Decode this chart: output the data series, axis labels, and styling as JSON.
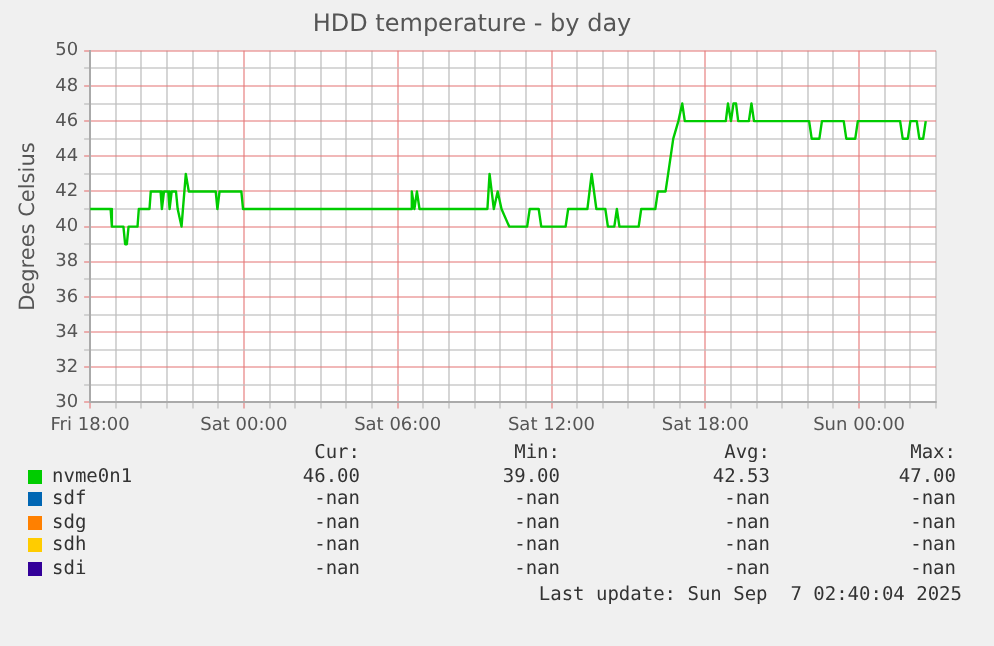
{
  "chart_data": {
    "type": "line",
    "title": "HDD temperature - by day",
    "ylabel": "Degrees Celsius",
    "xlim": [
      "2025-09-05T18:00",
      "2025-09-07T03:00"
    ],
    "xticks": [
      {
        "value": "2025-09-05T18:00",
        "label": "Fri 18:00"
      },
      {
        "value": "2025-09-05T19:00",
        "label": null
      },
      {
        "value": "2025-09-05T20:00",
        "label": null
      },
      {
        "value": "2025-09-05T21:00",
        "label": null
      },
      {
        "value": "2025-09-05T22:00",
        "label": null
      },
      {
        "value": "2025-09-05T23:00",
        "label": null
      },
      {
        "value": "2025-09-06T00:00",
        "label": "Sat 00:00"
      },
      {
        "value": "2025-09-06T01:00",
        "label": null
      },
      {
        "value": "2025-09-06T02:00",
        "label": null
      },
      {
        "value": "2025-09-06T03:00",
        "label": null
      },
      {
        "value": "2025-09-06T04:00",
        "label": null
      },
      {
        "value": "2025-09-06T05:00",
        "label": null
      },
      {
        "value": "2025-09-06T06:00",
        "label": "Sat 06:00"
      },
      {
        "value": "2025-09-06T07:00",
        "label": null
      },
      {
        "value": "2025-09-06T08:00",
        "label": null
      },
      {
        "value": "2025-09-06T09:00",
        "label": null
      },
      {
        "value": "2025-09-06T10:00",
        "label": null
      },
      {
        "value": "2025-09-06T11:00",
        "label": null
      },
      {
        "value": "2025-09-06T12:00",
        "label": "Sat 12:00"
      },
      {
        "value": "2025-09-06T13:00",
        "label": null
      },
      {
        "value": "2025-09-06T14:00",
        "label": null
      },
      {
        "value": "2025-09-06T15:00",
        "label": null
      },
      {
        "value": "2025-09-06T16:00",
        "label": null
      },
      {
        "value": "2025-09-06T17:00",
        "label": null
      },
      {
        "value": "2025-09-06T18:00",
        "label": "Sat 18:00"
      },
      {
        "value": "2025-09-06T19:00",
        "label": null
      },
      {
        "value": "2025-09-06T20:00",
        "label": null
      },
      {
        "value": "2025-09-06T21:00",
        "label": null
      },
      {
        "value": "2025-09-06T22:00",
        "label": null
      },
      {
        "value": "2025-09-06T23:00",
        "label": null
      },
      {
        "value": "2025-09-07T00:00",
        "label": "Sun 00:00"
      },
      {
        "value": "2025-09-07T01:00",
        "label": null
      },
      {
        "value": "2025-09-07T02:00",
        "label": null
      },
      {
        "value": "2025-09-07T03:00",
        "label": null
      }
    ],
    "ylim": [
      30,
      50
    ],
    "yticks": [
      30,
      {
        "value": 31,
        "label": null
      },
      32,
      {
        "value": 33,
        "label": null
      },
      34,
      {
        "value": 35,
        "label": null
      },
      36,
      {
        "value": 37,
        "label": null
      },
      38,
      {
        "value": 39,
        "label": null
      },
      40,
      {
        "value": 41,
        "label": null
      },
      42,
      {
        "value": 43,
        "label": null
      },
      44,
      {
        "value": 45,
        "label": null
      },
      46,
      {
        "value": 47,
        "label": null
      },
      48,
      {
        "value": 49,
        "label": null
      },
      50
    ],
    "grid": true,
    "legend": "bottom",
    "marker": "none",
    "line_style": "solid",
    "series": [
      {
        "name": "nvme0n1",
        "color": "#00cc00",
        "x": [
          "2025-09-05T18:00",
          "2025-09-05T18:48",
          "2025-09-05T18:51",
          "2025-09-05T19:18",
          "2025-09-05T19:22",
          "2025-09-05T19:26",
          "2025-09-05T19:30",
          "2025-09-05T19:51",
          "2025-09-05T19:54",
          "2025-09-05T20:19",
          "2025-09-05T20:22",
          "2025-09-05T20:45",
          "2025-09-05T20:48",
          "2025-09-05T20:53",
          "2025-09-05T21:03",
          "2025-09-05T21:06",
          "2025-09-05T21:11",
          "2025-09-05T21:21",
          "2025-09-05T21:25",
          "2025-09-05T21:34",
          "2025-09-05T21:44",
          "2025-09-05T21:51",
          "2025-09-05T22:54",
          "2025-09-05T22:58",
          "2025-09-05T23:03",
          "2025-09-05T23:54",
          "2025-09-05T23:58",
          "2025-09-06T06:30",
          "2025-09-06T06:33",
          "2025-09-06T06:39",
          "2025-09-06T06:45",
          "2025-09-06T06:51",
          "2025-09-06T09:30",
          "2025-09-06T09:35",
          "2025-09-06T09:45",
          "2025-09-06T09:54",
          "2025-09-06T10:03",
          "2025-09-06T10:21",
          "2025-09-06T11:03",
          "2025-09-06T11:09",
          "2025-09-06T11:30",
          "2025-09-06T11:36",
          "2025-09-06T12:33",
          "2025-09-06T12:39",
          "2025-09-06T13:24",
          "2025-09-06T13:34",
          "2025-09-06T13:45",
          "2025-09-06T14:06",
          "2025-09-06T14:12",
          "2025-09-06T14:27",
          "2025-09-06T14:33",
          "2025-09-06T14:39",
          "2025-09-06T15:24",
          "2025-09-06T15:30",
          "2025-09-06T16:03",
          "2025-09-06T16:09",
          "2025-09-06T16:27",
          "2025-09-06T16:33",
          "2025-09-06T16:45",
          "2025-09-06T16:57",
          "2025-09-06T17:06",
          "2025-09-06T17:12",
          "2025-09-06T18:48",
          "2025-09-06T18:53",
          "2025-09-06T19:00",
          "2025-09-06T19:06",
          "2025-09-06T19:12",
          "2025-09-06T19:17",
          "2025-09-06T19:42",
          "2025-09-06T19:48",
          "2025-09-06T19:54",
          "2025-09-06T22:03",
          "2025-09-06T22:09",
          "2025-09-06T22:27",
          "2025-09-06T22:33",
          "2025-09-06T23:24",
          "2025-09-06T23:30",
          "2025-09-06T23:51",
          "2025-09-06T23:57",
          "2025-09-07T01:36",
          "2025-09-07T01:42",
          "2025-09-07T01:54",
          "2025-09-07T02:00",
          "2025-09-07T02:15",
          "2025-09-07T02:21",
          "2025-09-07T02:30",
          "2025-09-07T02:36"
        ],
        "values": [
          41,
          41,
          40,
          40,
          39,
          39,
          40,
          40,
          41,
          41,
          42,
          42,
          41,
          42,
          42,
          41,
          42,
          42,
          41,
          40,
          43,
          42,
          42,
          41,
          42,
          42,
          41,
          41,
          42,
          41,
          42,
          41,
          41,
          43,
          41,
          42,
          41,
          40,
          40,
          41,
          41,
          40,
          40,
          41,
          41,
          43,
          41,
          41,
          40,
          40,
          41,
          40,
          40,
          41,
          41,
          42,
          42,
          43,
          45,
          46,
          47,
          46,
          46,
          47,
          46,
          47,
          47,
          46,
          46,
          47,
          46,
          46,
          45,
          45,
          46,
          46,
          45,
          45,
          46,
          46,
          45,
          45,
          46,
          46,
          45,
          45,
          46
        ]
      },
      {
        "name": "sdf",
        "color": "#0066b3"
      },
      {
        "name": "sdg",
        "color": "#ff8000"
      },
      {
        "name": "sdh",
        "color": "#ffcc00"
      },
      {
        "name": "sdi",
        "color": "#330099"
      }
    ],
    "annotations": [
      "Cur:",
      "Min:",
      "Avg:",
      "Max:",
      "46.00",
      "39.00",
      "42.53",
      "47.00",
      "-nan",
      "-nan",
      "-nan",
      "-nan",
      "-nan",
      "-nan",
      "-nan",
      "-nan",
      "-nan",
      "-nan",
      "-nan",
      "-nan",
      "-nan",
      "-nan",
      "-nan",
      "-nan",
      "Last update: Sun Sep  7 02:40:04 2025"
    ]
  }
}
